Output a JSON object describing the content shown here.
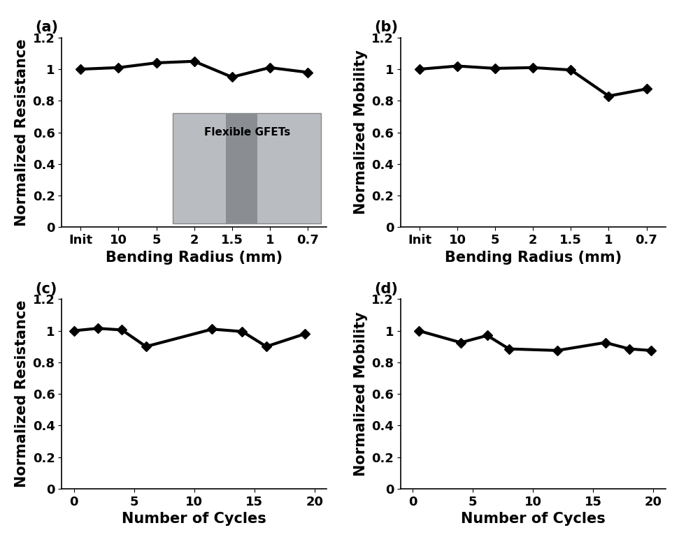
{
  "chart_data": [
    {
      "type": "line",
      "title": "(a)",
      "x_label": "Bending Radius (mm)",
      "y_label": "Normalized Resistance",
      "categories": [
        "Init",
        "10",
        "5",
        "2",
        "1.5",
        "1",
        "0.7"
      ],
      "values": [
        1.0,
        1.01,
        1.04,
        1.05,
        0.95,
        1.01,
        0.98
      ],
      "ylim": [
        0,
        1.2
      ],
      "yticks": [
        0,
        0.2,
        0.4,
        0.6,
        0.8,
        1,
        1.2
      ],
      "color": "#000000",
      "marker": "diamond",
      "grid": false,
      "annotation": "Flexible GFETs"
    },
    {
      "type": "line",
      "title": "(b)",
      "x_label": "Bending Radius (mm)",
      "y_label": "Normalized Mobility",
      "categories": [
        "Init",
        "10",
        "5",
        "2",
        "1.5",
        "1",
        "0.7"
      ],
      "values": [
        1.0,
        1.02,
        1.005,
        1.01,
        0.995,
        0.83,
        0.875
      ],
      "ylim": [
        0,
        1.2
      ],
      "yticks": [
        0,
        0.2,
        0.4,
        0.6,
        0.8,
        1,
        1.2
      ],
      "color": "#000000",
      "marker": "diamond",
      "grid": false
    },
    {
      "type": "line",
      "title": "(c)",
      "x_label": "Number of Cycles",
      "y_label": "Normalized Resistance",
      "x": [
        0,
        2,
        4,
        6,
        11.5,
        14,
        16,
        19.2
      ],
      "values": [
        1.0,
        1.015,
        1.005,
        0.9,
        1.01,
        0.995,
        0.9,
        0.98
      ],
      "xlim": [
        -1,
        21
      ],
      "xticks": [
        0,
        5,
        10,
        15,
        20
      ],
      "ylim": [
        0,
        1.2
      ],
      "yticks": [
        0,
        0.2,
        0.4,
        0.6,
        0.8,
        1,
        1.2
      ],
      "color": "#000000",
      "marker": "diamond",
      "grid": false
    },
    {
      "type": "line",
      "title": "(d)",
      "x_label": "Number of Cycles",
      "y_label": "Normalized Mobility",
      "x": [
        0.5,
        4,
        6.2,
        8,
        12,
        16,
        18,
        19.8
      ],
      "values": [
        1.0,
        0.925,
        0.97,
        0.885,
        0.875,
        0.925,
        0.885,
        0.875
      ],
      "xlim": [
        -1,
        21
      ],
      "xticks": [
        0,
        5,
        10,
        15,
        20
      ],
      "ylim": [
        0,
        1.2
      ],
      "yticks": [
        0,
        0.2,
        0.4,
        0.6,
        0.8,
        1,
        1.2
      ],
      "color": "#000000",
      "marker": "diamond",
      "grid": false
    }
  ]
}
